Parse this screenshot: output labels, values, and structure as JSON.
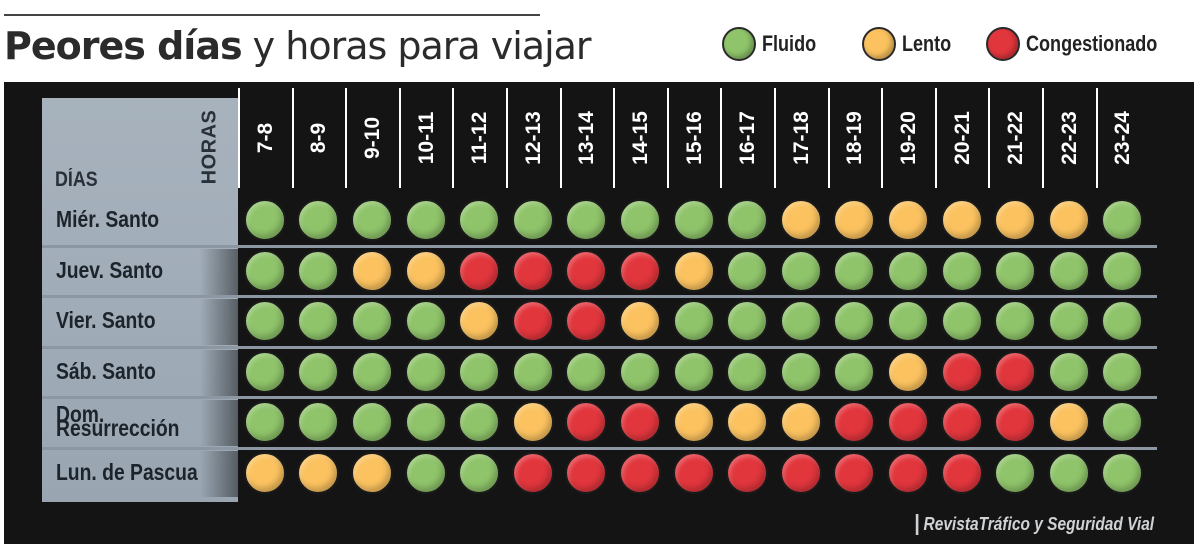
{
  "title": {
    "bold": "Peores días",
    "light": "y horas para viajar"
  },
  "legend": [
    {
      "key": "fluido",
      "label": "Fluido",
      "color": "#8fc46a"
    },
    {
      "key": "lento",
      "label": "Lento",
      "color": "#fbc25f"
    },
    {
      "key": "congestionado",
      "label": "Congestionado",
      "color": "#e2363d"
    }
  ],
  "axis": {
    "hours_label": "HORAS",
    "days_label": "DÍAS"
  },
  "credit": "RevistaTráfico y Seguridad Vial",
  "chart_data": {
    "type": "heatmap",
    "x": [
      "7-8",
      "8-9",
      "9-10",
      "10-11",
      "11-12",
      "12-13",
      "13-14",
      "14-15",
      "15-16",
      "16-17",
      "17-18",
      "18-19",
      "19-20",
      "20-21",
      "21-22",
      "22-23",
      "23-24"
    ],
    "y": [
      "Miér. Santo",
      "Juev. Santo",
      "Vier. Santo",
      "Sáb. Santo",
      "Dom. Resurrección",
      "Lun. de Pascua"
    ],
    "levels": [
      "Fluido",
      "Lento",
      "Congestionado"
    ],
    "values": [
      [
        "Fluido",
        "Fluido",
        "Fluido",
        "Fluido",
        "Fluido",
        "Fluido",
        "Fluido",
        "Fluido",
        "Fluido",
        "Fluido",
        "Lento",
        "Lento",
        "Lento",
        "Lento",
        "Lento",
        "Lento",
        "Fluido"
      ],
      [
        "Fluido",
        "Fluido",
        "Lento",
        "Lento",
        "Congestionado",
        "Congestionado",
        "Congestionado",
        "Congestionado",
        "Lento",
        "Fluido",
        "Fluido",
        "Fluido",
        "Fluido",
        "Fluido",
        "Fluido",
        "Fluido",
        "Fluido"
      ],
      [
        "Fluido",
        "Fluido",
        "Fluido",
        "Fluido",
        "Lento",
        "Congestionado",
        "Congestionado",
        "Lento",
        "Fluido",
        "Fluido",
        "Fluido",
        "Fluido",
        "Fluido",
        "Fluido",
        "Fluido",
        "Fluido",
        "Fluido"
      ],
      [
        "Fluido",
        "Fluido",
        "Fluido",
        "Fluido",
        "Fluido",
        "Fluido",
        "Fluido",
        "Fluido",
        "Fluido",
        "Fluido",
        "Fluido",
        "Fluido",
        "Lento",
        "Congestionado",
        "Congestionado",
        "Fluido",
        "Fluido"
      ],
      [
        "Fluido",
        "Fluido",
        "Fluido",
        "Fluido",
        "Fluido",
        "Lento",
        "Congestionado",
        "Congestionado",
        "Lento",
        "Lento",
        "Lento",
        "Congestionado",
        "Congestionado",
        "Congestionado",
        "Congestionado",
        "Lento",
        "Fluido"
      ],
      [
        "Lento",
        "Lento",
        "Lento",
        "Fluido",
        "Fluido",
        "Congestionado",
        "Congestionado",
        "Congestionado",
        "Congestionado",
        "Congestionado",
        "Congestionado",
        "Congestionado",
        "Congestionado",
        "Congestionado",
        "Fluido",
        "Fluido",
        "Fluido"
      ]
    ],
    "day_lines": [
      [
        "Miér. Santo"
      ],
      [
        "Juev. Santo"
      ],
      [
        "Vier. Santo"
      ],
      [
        "Sáb. Santo"
      ],
      [
        "Dom.",
        "Resurrección"
      ],
      [
        "Lun. de Pascua"
      ]
    ]
  }
}
